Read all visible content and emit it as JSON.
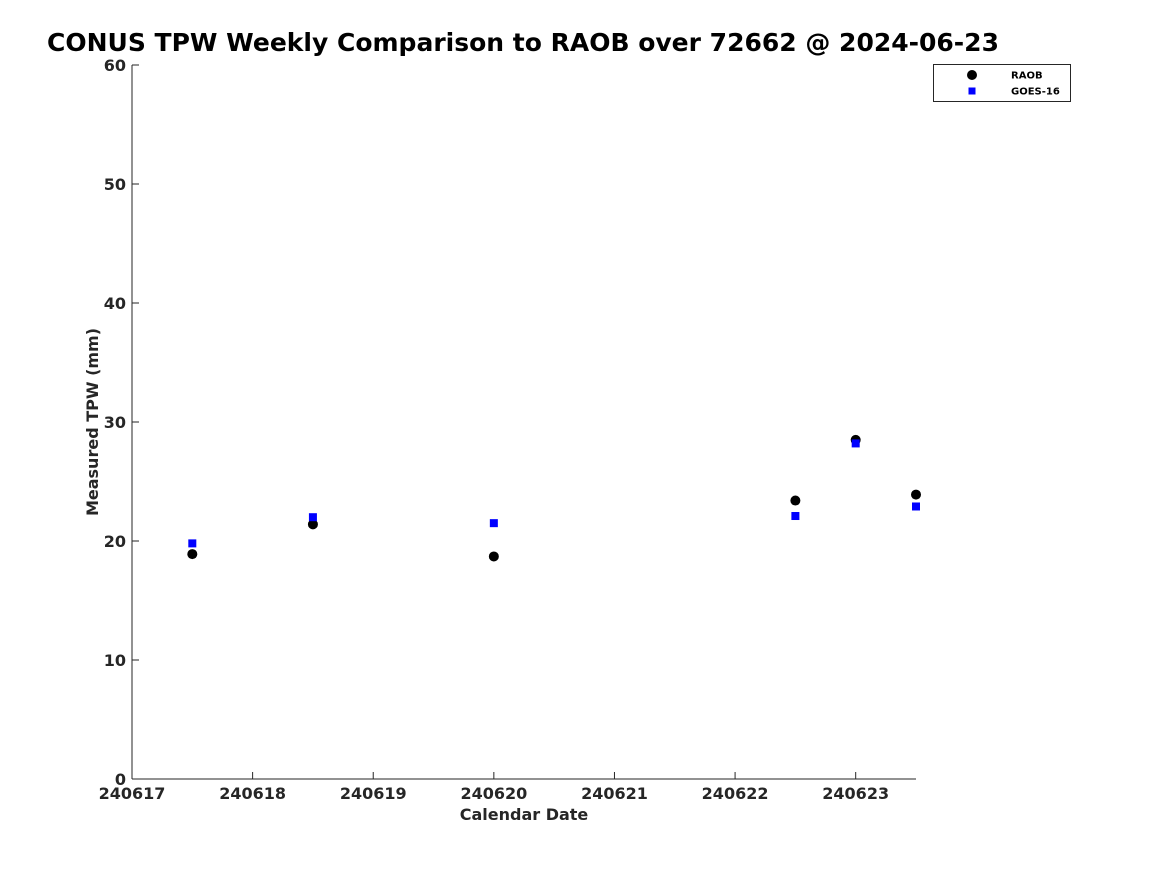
{
  "chart_data": {
    "type": "scatter",
    "title": "CONUS TPW Weekly Comparison to RAOB over 72662 @ 2024-06-23",
    "xlabel": "Calendar Date",
    "ylabel": "Measured TPW (mm)",
    "xlim": [
      240617,
      240623.5
    ],
    "ylim": [
      0,
      60
    ],
    "xticks": [
      "240617",
      "240618",
      "240619",
      "240620",
      "240621",
      "240622",
      "240623"
    ],
    "yticks": [
      "0",
      "10",
      "20",
      "30",
      "40",
      "50",
      "60"
    ],
    "grid": false,
    "legend_position": "top-right",
    "series": [
      {
        "name": "RAOB",
        "marker": "circle",
        "color": "#000000",
        "x": [
          240617.5,
          240618.5,
          240620.0,
          240622.5,
          240623.0,
          240623.5
        ],
        "y": [
          18.9,
          21.4,
          18.7,
          23.4,
          28.5,
          23.9
        ]
      },
      {
        "name": "GOES-16",
        "marker": "square",
        "color": "#0000ff",
        "x": [
          240617.5,
          240618.5,
          240620.0,
          240622.5,
          240623.0,
          240623.5
        ],
        "y": [
          19.8,
          22.0,
          21.5,
          22.1,
          28.2,
          22.9
        ]
      }
    ]
  }
}
